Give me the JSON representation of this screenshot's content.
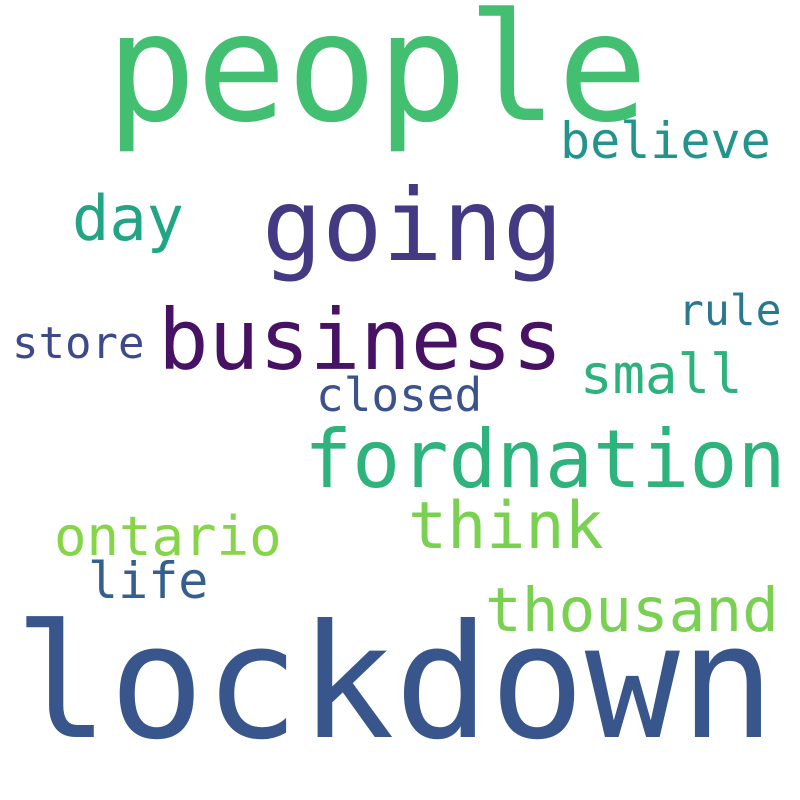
{
  "words": [
    {
      "text": "people",
      "color": "#43bf71"
    },
    {
      "text": "believe",
      "color": "#22948b"
    },
    {
      "text": "day",
      "color": "#21a585"
    },
    {
      "text": "going",
      "color": "#443a83"
    },
    {
      "text": "rule",
      "color": "#2a788e"
    },
    {
      "text": "store",
      "color": "#3e4989"
    },
    {
      "text": "business",
      "color": "#471164"
    },
    {
      "text": "small",
      "color": "#2db27d"
    },
    {
      "text": "closed",
      "color": "#3b528b"
    },
    {
      "text": "fordnation",
      "color": "#2eb37c"
    },
    {
      "text": "think",
      "color": "#7ad151"
    },
    {
      "text": "ontario",
      "color": "#86d549"
    },
    {
      "text": "life",
      "color": "#355f8d"
    },
    {
      "text": "thousand",
      "color": "#7ad151"
    },
    {
      "text": "lockdown",
      "color": "#39568c"
    }
  ]
}
